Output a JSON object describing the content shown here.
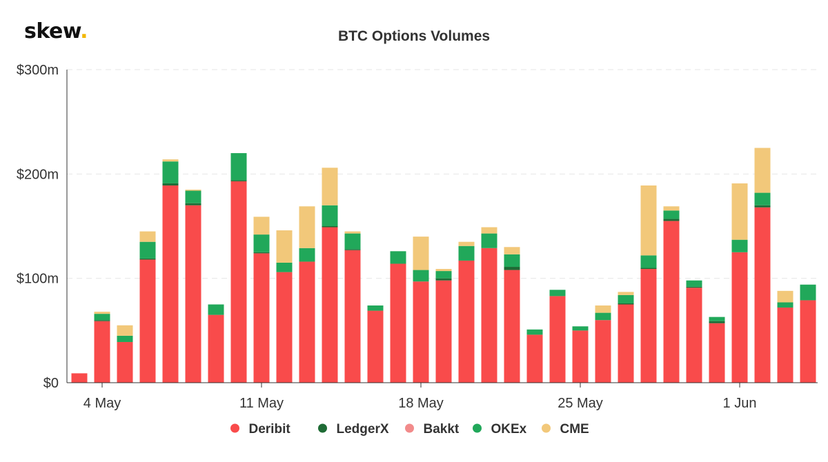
{
  "brand": {
    "logo_text": "skew",
    "logo_dot": "."
  },
  "chart_data": {
    "type": "bar",
    "stacked": true,
    "title": "BTC Options Volumes",
    "xlabel": "",
    "ylabel": "",
    "ylim": [
      0,
      300
    ],
    "y_unit": "$ millions",
    "y_ticks": [
      0,
      100,
      200,
      300
    ],
    "y_tick_labels": [
      "$0",
      "$100m",
      "$200m",
      "$300m"
    ],
    "x_tick_labels": [
      "4 May",
      "11 May",
      "18 May",
      "25 May",
      "1 Jun"
    ],
    "x_tick_indices": [
      1,
      8,
      15,
      22,
      29
    ],
    "grid": true,
    "legend_position": "bottom-center",
    "categories": [
      "2020-05-03",
      "2020-05-04",
      "2020-05-05",
      "2020-05-06",
      "2020-05-07",
      "2020-05-08",
      "2020-05-09",
      "2020-05-10",
      "2020-05-11",
      "2020-05-12",
      "2020-05-13",
      "2020-05-14",
      "2020-05-15",
      "2020-05-16",
      "2020-05-17",
      "2020-05-18",
      "2020-05-19",
      "2020-05-20",
      "2020-05-21",
      "2020-05-22",
      "2020-05-23",
      "2020-05-24",
      "2020-05-25",
      "2020-05-26",
      "2020-05-27",
      "2020-05-28",
      "2020-05-29",
      "2020-05-30",
      "2020-05-31",
      "2020-06-01",
      "2020-06-02",
      "2020-06-03",
      "2020-06-04",
      "2020-06-05"
    ],
    "series": [
      {
        "name": "Deribit",
        "color": "#f94b4b",
        "values": [
          9,
          59,
          39,
          118,
          189,
          170,
          65,
          193,
          124,
          106,
          116,
          149,
          127,
          69,
          114,
          97,
          98,
          117,
          129,
          108,
          46,
          83,
          50,
          60,
          75,
          109,
          155,
          91,
          57,
          125,
          168,
          72,
          79,
          0
        ]
      },
      {
        "name": "LedgerX",
        "color": "#1e6b35",
        "values": [
          0,
          1,
          0,
          1,
          2,
          2,
          0,
          1,
          1,
          0,
          0,
          1,
          1,
          0,
          0,
          0,
          2,
          0,
          0,
          3,
          0,
          0,
          0,
          0,
          1,
          1,
          2,
          1,
          2,
          0,
          2,
          0,
          0,
          0
        ]
      },
      {
        "name": "Bakkt",
        "color": "#f28b8b",
        "values": [
          0,
          0,
          0,
          0,
          0,
          0,
          0,
          0,
          0,
          0,
          0,
          0,
          0,
          0,
          0,
          0,
          0,
          0,
          0,
          0,
          0,
          0,
          0,
          0,
          0,
          0,
          0,
          0,
          0,
          0,
          0,
          0,
          0,
          0
        ]
      },
      {
        "name": "OKEx",
        "color": "#21a85a",
        "values": [
          0,
          6,
          6,
          16,
          21,
          12,
          10,
          26,
          17,
          9,
          13,
          20,
          15,
          5,
          12,
          11,
          7,
          14,
          14,
          12,
          5,
          6,
          4,
          7,
          8,
          12,
          8,
          6,
          4,
          12,
          12,
          5,
          15,
          0
        ]
      },
      {
        "name": "CME",
        "color": "#f2c87a",
        "values": [
          0,
          2,
          10,
          10,
          2,
          1,
          0,
          0,
          17,
          31,
          40,
          36,
          2,
          0,
          0,
          32,
          2,
          4,
          6,
          7,
          0,
          0,
          0,
          7,
          3,
          67,
          4,
          0,
          0,
          54,
          43,
          11,
          0,
          0
        ]
      }
    ]
  }
}
